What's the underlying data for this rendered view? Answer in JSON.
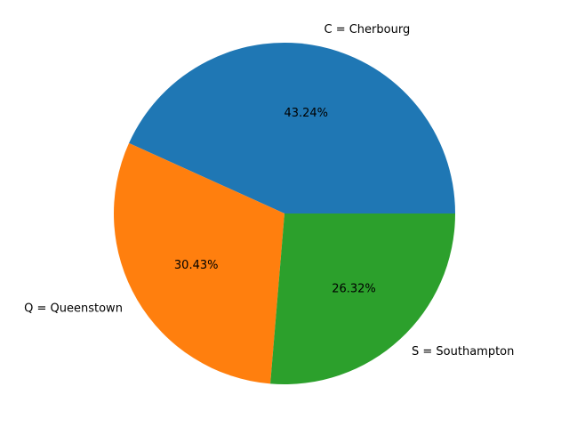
{
  "chart_data": {
    "type": "pie",
    "slices": [
      {
        "label": "C = Cherbourg",
        "value": 43.24,
        "pct_label": "43.24%",
        "color": "#1f77b4"
      },
      {
        "label": "Q = Queenstown",
        "value": 30.43,
        "pct_label": "30.43%",
        "color": "#ff7f0e"
      },
      {
        "label": "S = Southampton",
        "value": 26.32,
        "pct_label": "26.32%",
        "color": "#2ca02c"
      }
    ],
    "start_angle_deg": 0,
    "direction": "counterclockwise",
    "legend": "none"
  }
}
